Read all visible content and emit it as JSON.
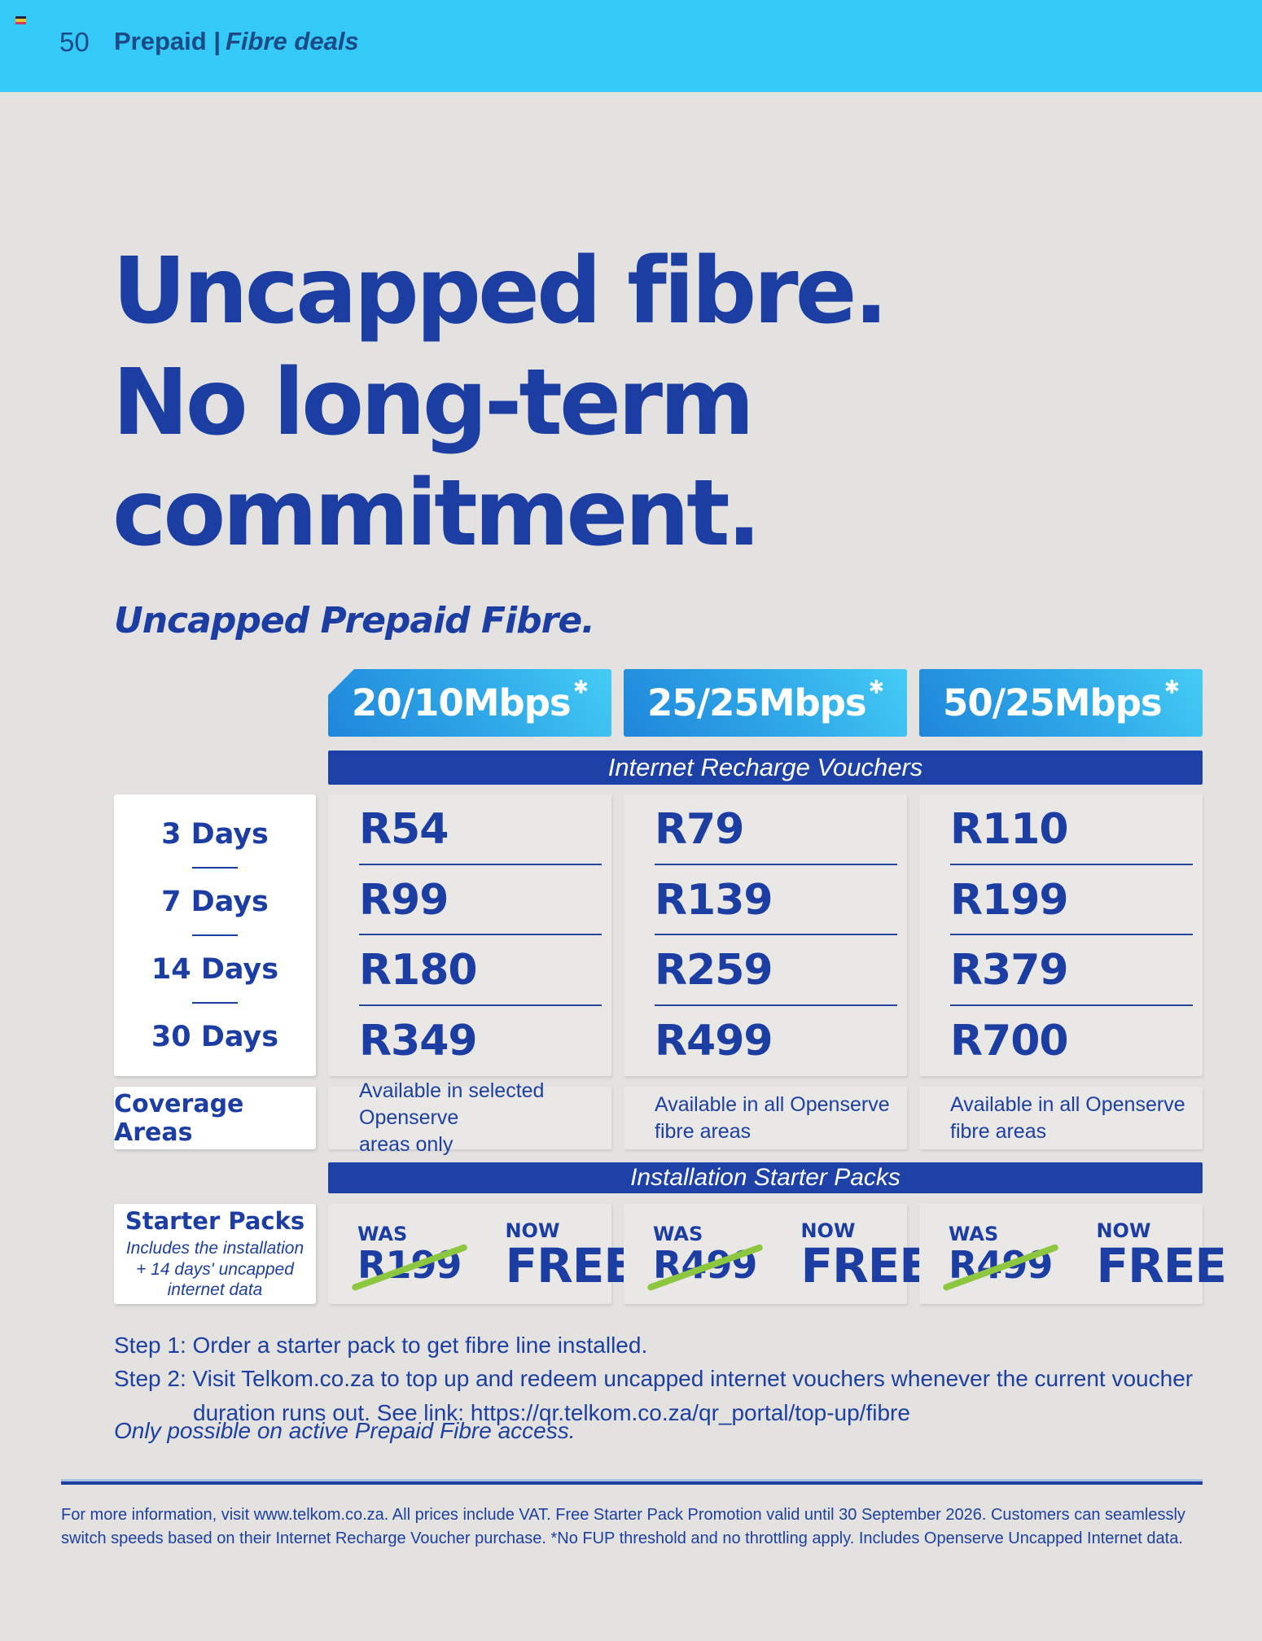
{
  "colors": {
    "topbar_cyan": "#34c9f6",
    "navy_text": "#1c3da1",
    "section_bar_blue": "#1e41a8",
    "tile_gradient_start": "#1f86da",
    "tile_gradient_end": "#45ccf5",
    "strike_green": "#8dc63f",
    "page_background": "#e3e2e0"
  },
  "topbar": {
    "page_number": "50",
    "section": "Prepaid |",
    "subsection": "Fibre deals"
  },
  "hero": {
    "line1": "Uncapped fibre.",
    "line2": "No long-term",
    "line3": "commitment.",
    "subtitle": "Uncapped Prepaid Fibre."
  },
  "pricing": {
    "asterisk": "✱",
    "speeds": [
      "20/10Mbps",
      "25/25Mbps",
      "50/25Mbps"
    ],
    "vouchers_header": "Internet Recharge Vouchers",
    "durations": [
      "3 Days",
      "7 Days",
      "14 Days",
      "30 Days"
    ],
    "prices": [
      [
        "R54",
        "R99",
        "R180",
        "R349"
      ],
      [
        "R79",
        "R139",
        "R259",
        "R499"
      ],
      [
        "R110",
        "R199",
        "R379",
        "R700"
      ]
    ],
    "coverage_label": "Coverage Areas",
    "coverage": [
      [
        "Available in selected Openserve",
        "areas only"
      ],
      [
        "Available in all Openserve",
        "fibre areas"
      ],
      [
        "Available in all Openserve",
        "fibre areas"
      ]
    ],
    "installation_header": "Installation Starter Packs",
    "starter_label": "Starter Packs",
    "starter_sub_lines": [
      "Includes the installation",
      "+ 14 days' uncapped",
      "internet data"
    ],
    "was_label": "WAS",
    "now_label": "NOW",
    "was_prices": [
      "R199",
      "R499",
      "R499"
    ],
    "free_label": "FREE"
  },
  "steps": {
    "step1": "Step 1: Order a starter pack to get fibre line installed.",
    "step2_line1": "Step 2: Visit Telkom.co.za to top up and redeem uncapped internet vouchers whenever the current voucher",
    "step2_prefix": "duration runs out. See link: ",
    "step2_link": "https://qr.telkom.co.za/qr_portal/top-up/fibre"
  },
  "note": "Only possible on active Prepaid Fibre access.",
  "footer": "For more information, visit www.telkom.co.za. All prices include VAT. Free Starter Pack Promotion valid until 30 September 2026. Customers can seamlessly switch speeds based on their Internet Recharge Voucher purchase. *No FUP threshold and no throttling apply. Includes Openserve Uncapped Internet data."
}
